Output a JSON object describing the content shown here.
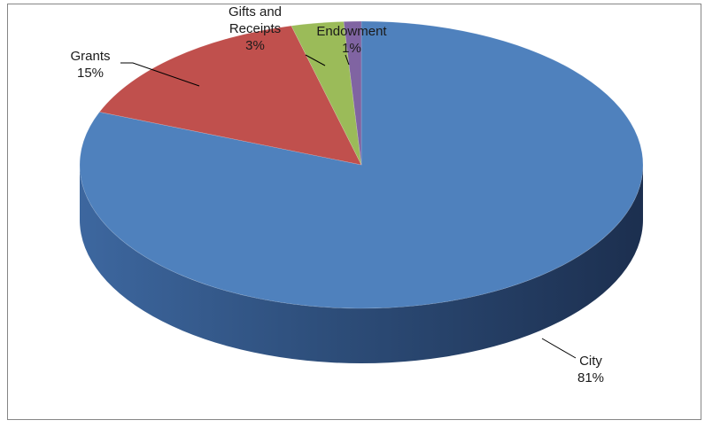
{
  "chart_data": {
    "type": "pie",
    "variant": "3d",
    "title": "",
    "legend": "none",
    "slices": [
      {
        "name": "City",
        "value": 81,
        "label": "81%",
        "color": "#4F81BD",
        "side_dark": "#1F3558",
        "side_light": "#3F6AA8"
      },
      {
        "name": "Grants",
        "value": 15,
        "label": "15%",
        "color": "#C0504D",
        "side_dark": "#7A2F2D",
        "side_light": "#9C3F3C"
      },
      {
        "name": "Gifts and Receipts",
        "value": 3,
        "label": "3%",
        "color": "#9BBB59",
        "side_dark": "#5F7A2F",
        "side_light": "#7F9C45"
      },
      {
        "name": "Endowment",
        "value": 1,
        "label": "1%",
        "color": "#8064A2",
        "side_dark": "#4B3866",
        "side_light": "#674F85"
      }
    ]
  }
}
